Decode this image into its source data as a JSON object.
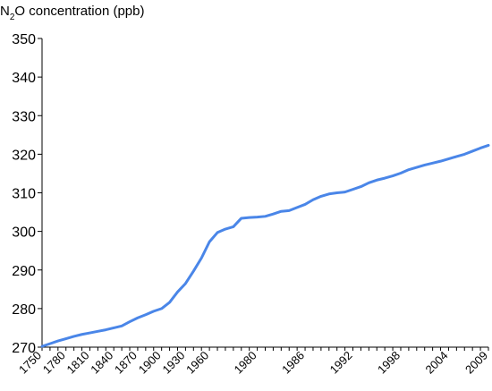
{
  "chart_data": {
    "type": "line",
    "title": "",
    "ylabel": {
      "prefix": "N",
      "subscript": "2",
      "suffix": "O concentration (ppb)"
    },
    "xlabel": "",
    "ylim": [
      270,
      350
    ],
    "yticks": [
      "270",
      "280",
      "290",
      "300",
      "310",
      "320",
      "330",
      "340",
      "350"
    ],
    "xtick_labels": [
      "1750",
      "1780",
      "1810",
      "1840",
      "1870",
      "1900",
      "1930",
      "1960",
      "1980",
      "1986",
      "1992",
      "1998",
      "2004",
      "2009"
    ],
    "line_color": "#4a86e8",
    "grid": false,
    "series": [
      {
        "x": [
          "1750",
          "1760",
          "1770",
          "1780",
          "1790",
          "1800",
          "1810",
          "1820",
          "1830",
          "1840",
          "1850",
          "1860",
          "1870",
          "1880",
          "1890",
          "1900",
          "1910",
          "1920",
          "1930",
          "1940",
          "1950",
          "1960",
          "1965",
          "1970",
          "1975",
          "1978",
          "1979",
          "1980",
          "1981",
          "1982",
          "1983",
          "1984",
          "1985",
          "1986",
          "1987",
          "1988",
          "1989",
          "1990",
          "1991",
          "1992",
          "1993",
          "1994",
          "1995",
          "1996",
          "1997",
          "1998",
          "1999",
          "2000",
          "2001",
          "2002",
          "2003",
          "2004",
          "2005",
          "2006",
          "2007",
          "2008",
          "2009"
        ],
        "values": [
          270.2,
          270.9,
          271.6,
          272.2,
          272.8,
          273.3,
          273.7,
          274.1,
          274.5,
          275.0,
          275.5,
          276.6,
          277.6,
          278.4,
          279.3,
          280.0,
          281.6,
          284.3,
          286.5,
          289.7,
          293.1,
          297.3,
          299.7,
          300.6,
          301.2,
          303.4,
          303.6,
          303.7,
          303.9,
          304.5,
          305.2,
          305.4,
          306.2,
          307.0,
          308.2,
          309.1,
          309.7,
          310.0,
          310.2,
          310.9,
          311.6,
          312.6,
          313.3,
          313.8,
          314.4,
          315.1,
          316.0,
          316.6,
          317.2,
          317.7,
          318.2,
          318.8,
          319.4,
          320.0,
          320.8,
          321.6,
          322.3
        ]
      }
    ]
  }
}
